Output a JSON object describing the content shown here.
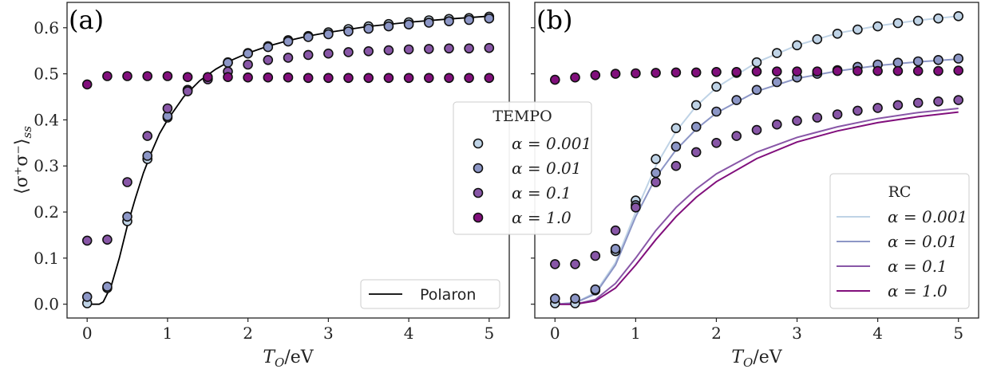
{
  "chart_data": [
    {
      "panel": "(a)",
      "type": "scatter",
      "xlabel": "T_O/eV",
      "ylabel": "⟨σ⁺σ⁻⟩_ss",
      "xlim": [
        -0.25,
        5.25
      ],
      "ylim": [
        -0.03,
        0.655
      ],
      "xticks": [
        "0",
        "1",
        "2",
        "3",
        "4",
        "5"
      ],
      "yticks": [
        "0.0",
        "0.1",
        "0.2",
        "0.3",
        "0.4",
        "0.5",
        "0.6"
      ],
      "colors": {
        "a0.001": "#bfd3e6",
        "a0.01": "#8c96c6",
        "a0.1": "#8856a7",
        "a1.0": "#810f7c"
      },
      "series": [
        {
          "key": "a0.001",
          "x": [
            0,
            0.25,
            0.5,
            0.75,
            1,
            1.25,
            1.5,
            1.75,
            2,
            2.25,
            2.5,
            2.75,
            3,
            3.25,
            3.5,
            3.75,
            4,
            4.25,
            4.5,
            4.75,
            5
          ],
          "values": [
            0.002,
            0.035,
            0.18,
            0.315,
            0.405,
            0.465,
            0.49,
            0.525,
            0.545,
            0.56,
            0.573,
            0.582,
            0.59,
            0.597,
            0.603,
            0.608,
            0.612,
            0.616,
            0.619,
            0.621,
            0.624
          ]
        },
        {
          "key": "a0.01",
          "x": [
            0,
            0.25,
            0.5,
            0.75,
            1,
            1.25,
            1.5,
            1.75,
            2,
            2.25,
            2.5,
            2.75,
            3,
            3.25,
            3.5,
            3.75,
            4,
            4.25,
            4.5,
            4.75,
            5
          ],
          "values": [
            0.016,
            0.038,
            0.19,
            0.322,
            0.408,
            0.465,
            0.49,
            0.524,
            0.544,
            0.558,
            0.57,
            0.58,
            0.586,
            0.592,
            0.598,
            0.603,
            0.607,
            0.611,
            0.614,
            0.617,
            0.62
          ]
        },
        {
          "key": "a0.1",
          "x": [
            0,
            0.25,
            0.5,
            0.75,
            1,
            1.25,
            1.5,
            1.75,
            2,
            2.25,
            2.5,
            2.75,
            3,
            3.25,
            3.5,
            3.75,
            4,
            4.25,
            4.5,
            4.75,
            5
          ],
          "values": [
            0.138,
            0.14,
            0.265,
            0.365,
            0.425,
            0.462,
            0.488,
            0.505,
            0.52,
            0.53,
            0.535,
            0.541,
            0.544,
            0.547,
            0.549,
            0.551,
            0.553,
            0.554,
            0.555,
            0.555,
            0.556
          ]
        },
        {
          "key": "a1.0",
          "x": [
            0,
            0.25,
            0.5,
            0.75,
            1,
            1.25,
            1.5,
            1.75,
            2,
            2.25,
            2.5,
            2.75,
            3,
            3.25,
            3.5,
            3.75,
            4,
            4.25,
            4.5,
            4.75,
            5
          ],
          "values": [
            0.477,
            0.495,
            0.495,
            0.495,
            0.495,
            0.493,
            0.493,
            0.493,
            0.492,
            0.492,
            0.492,
            0.491,
            0.491,
            0.491,
            0.491,
            0.491,
            0.491,
            0.491,
            0.491,
            0.491,
            0.491
          ]
        }
      ],
      "line": {
        "name": "Polaron",
        "x": [
          0,
          0.15,
          0.2,
          0.3,
          0.4,
          0.5,
          0.6,
          0.7,
          0.8,
          0.9,
          1.0,
          1.2,
          1.4,
          1.6,
          1.8,
          2.0,
          2.25,
          2.5,
          2.75,
          3.0,
          3.5,
          4.0,
          4.5,
          5.0
        ],
        "values": [
          0.0,
          0.0,
          0.005,
          0.04,
          0.1,
          0.17,
          0.23,
          0.285,
          0.33,
          0.37,
          0.4,
          0.45,
          0.485,
          0.51,
          0.53,
          0.545,
          0.56,
          0.572,
          0.582,
          0.59,
          0.603,
          0.612,
          0.619,
          0.625
        ]
      },
      "legend": {
        "title": "TEMPO",
        "entries": [
          "α = 0.001",
          "α = 0.01",
          "α = 0.1",
          "α = 1.0"
        ],
        "line_entry": "Polaron"
      }
    },
    {
      "panel": "(b)",
      "type": "scatter",
      "xlabel": "T_O/eV",
      "xlim": [
        -0.25,
        5.25
      ],
      "ylim": [
        -0.03,
        0.655
      ],
      "xticks": [
        "0",
        "1",
        "2",
        "3",
        "4",
        "5"
      ],
      "series": [
        {
          "key": "a0.001",
          "x": [
            0,
            0.25,
            0.5,
            0.75,
            1,
            1.25,
            1.5,
            1.75,
            2,
            2.25,
            2.5,
            2.75,
            3,
            3.25,
            3.5,
            3.75,
            4,
            4.25,
            4.5,
            4.75,
            5
          ],
          "values": [
            0.002,
            0.002,
            0.03,
            0.115,
            0.225,
            0.315,
            0.382,
            0.432,
            0.472,
            0.502,
            0.525,
            0.545,
            0.562,
            0.575,
            0.587,
            0.596,
            0.603,
            0.61,
            0.615,
            0.62,
            0.625
          ]
        },
        {
          "key": "a0.01",
          "x": [
            0,
            0.25,
            0.5,
            0.75,
            1,
            1.25,
            1.5,
            1.75,
            2,
            2.25,
            2.5,
            2.75,
            3,
            3.25,
            3.5,
            3.75,
            4,
            4.25,
            4.5,
            4.75,
            5
          ],
          "values": [
            0.012,
            0.012,
            0.032,
            0.12,
            0.215,
            0.285,
            0.342,
            0.385,
            0.418,
            0.443,
            0.465,
            0.482,
            0.492,
            0.5,
            0.508,
            0.515,
            0.52,
            0.524,
            0.527,
            0.53,
            0.533
          ]
        },
        {
          "key": "a0.1",
          "x": [
            0,
            0.25,
            0.5,
            0.75,
            1,
            1.25,
            1.5,
            1.75,
            2,
            2.25,
            2.5,
            2.75,
            3,
            3.25,
            3.5,
            3.75,
            4,
            4.25,
            4.5,
            4.75,
            5
          ],
          "values": [
            0.087,
            0.087,
            0.105,
            0.16,
            0.21,
            0.265,
            0.3,
            0.33,
            0.35,
            0.365,
            0.378,
            0.39,
            0.398,
            0.405,
            0.412,
            0.42,
            0.426,
            0.432,
            0.437,
            0.44,
            0.443
          ]
        },
        {
          "key": "a1.0",
          "x": [
            0,
            0.25,
            0.5,
            0.75,
            1,
            1.25,
            1.5,
            1.75,
            2,
            2.25,
            2.5,
            2.75,
            3,
            3.25,
            3.5,
            3.75,
            4,
            4.25,
            4.5,
            4.75,
            5
          ],
          "values": [
            0.487,
            0.492,
            0.497,
            0.5,
            0.501,
            0.502,
            0.503,
            0.503,
            0.504,
            0.504,
            0.505,
            0.505,
            0.505,
            0.505,
            0.506,
            0.506,
            0.506,
            0.506,
            0.506,
            0.506,
            0.507
          ]
        }
      ],
      "lines": [
        {
          "key": "a0.001",
          "x": [
            0,
            0.25,
            0.5,
            0.75,
            1,
            1.25,
            1.5,
            1.75,
            2,
            2.5,
            3,
            3.5,
            4,
            4.5,
            5
          ],
          "values": [
            0.0,
            0.003,
            0.025,
            0.09,
            0.2,
            0.3,
            0.375,
            0.43,
            0.47,
            0.525,
            0.562,
            0.588,
            0.604,
            0.616,
            0.625
          ]
        },
        {
          "key": "a0.01",
          "x": [
            0,
            0.25,
            0.5,
            0.75,
            1,
            1.25,
            1.5,
            1.75,
            2,
            2.5,
            3,
            3.5,
            4,
            4.5,
            5
          ],
          "values": [
            0.0,
            0.003,
            0.022,
            0.085,
            0.19,
            0.275,
            0.335,
            0.38,
            0.415,
            0.462,
            0.49,
            0.506,
            0.518,
            0.526,
            0.532
          ]
        },
        {
          "key": "a0.1",
          "x": [
            0,
            0.25,
            0.5,
            0.75,
            1,
            1.25,
            1.5,
            1.75,
            2,
            2.5,
            3,
            3.5,
            4,
            4.5,
            5
          ],
          "values": [
            0.0,
            0.0,
            0.01,
            0.045,
            0.1,
            0.16,
            0.21,
            0.25,
            0.283,
            0.33,
            0.362,
            0.385,
            0.403,
            0.416,
            0.425
          ]
        },
        {
          "key": "a1.0",
          "x": [
            0,
            0.25,
            0.5,
            0.75,
            1,
            1.25,
            1.5,
            1.75,
            2,
            2.5,
            3,
            3.5,
            4,
            4.5,
            5
          ],
          "values": [
            0.0,
            0.0,
            0.007,
            0.035,
            0.085,
            0.14,
            0.19,
            0.232,
            0.266,
            0.316,
            0.352,
            0.376,
            0.394,
            0.407,
            0.417
          ]
        }
      ],
      "legend": {
        "title": "RC",
        "entries": [
          "α = 0.001",
          "α = 0.01",
          "α = 0.1",
          "α = 1.0"
        ]
      }
    }
  ]
}
